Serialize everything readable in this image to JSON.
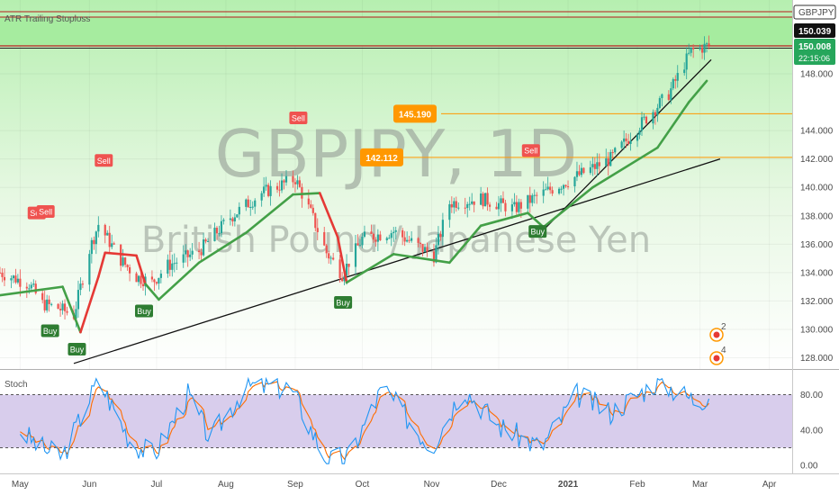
{
  "main_title": {
    "symbol": "GBPJPY, 1D",
    "name": "British Pound / Japanese Yen"
  },
  "indicator_label": "ATR Trailing Stoploss",
  "stoch_label": "Stoch",
  "price_axis": {
    "ticks": [
      "128.000",
      "130.000",
      "132.000",
      "134.000",
      "136.000",
      "138.000",
      "140.000",
      "142.000",
      "144.000",
      "148.000"
    ]
  },
  "stoch_axis": {
    "ticks": [
      "0.00",
      "40.00",
      "80.00"
    ]
  },
  "time_axis": {
    "ticks": [
      "May",
      "Jun",
      "Jul",
      "Aug",
      "Sep",
      "Oct",
      "Nov",
      "Dec",
      "2021",
      "Feb",
      "Mar",
      "Apr"
    ]
  },
  "right_labels": {
    "symbol_tag": "GBPJPY",
    "price_top": "150.039",
    "price_last": "150.008",
    "countdown": "22:15:06"
  },
  "levels": [
    {
      "label": "145.190"
    },
    {
      "label": "142.112"
    }
  ],
  "signals": {
    "sell": "Sell",
    "buy": "Buy"
  },
  "events": {
    "a": "2",
    "b": "4"
  },
  "colors": {
    "up": "#26a69a",
    "down": "#ef5350",
    "stop_up": "#43a047",
    "stop_down": "#e53935",
    "level": "#ff9800",
    "zone": "#9be79b",
    "stoch_k": "#2196f3",
    "stoch_d": "#ff6d00",
    "stoch_bg": "#d1c4e9"
  },
  "chart_data": {
    "type": "candlestick",
    "symbol": "GBPJPY",
    "timeframe": "1D",
    "period": "May 2020 to Mar 2021",
    "price_range": [
      127.0,
      151.5
    ],
    "close_path": [
      {
        "x": "2020-04-22",
        "y": 134.0
      },
      {
        "x": "2020-05-05",
        "y": 133.2
      },
      {
        "x": "2020-05-11",
        "y": 131.8
      },
      {
        "x": "2020-05-18",
        "y": 131.5
      },
      {
        "x": "2020-05-25",
        "y": 131.0
      },
      {
        "x": "2020-06-01",
        "y": 135.6
      },
      {
        "x": "2020-06-05",
        "y": 137.4
      },
      {
        "x": "2020-06-15",
        "y": 134.9
      },
      {
        "x": "2020-06-22",
        "y": 133.7
      },
      {
        "x": "2020-06-29",
        "y": 133.3
      },
      {
        "x": "2020-07-06",
        "y": 134.5
      },
      {
        "x": "2020-07-20",
        "y": 135.5
      },
      {
        "x": "2020-08-03",
        "y": 137.9
      },
      {
        "x": "2020-08-17",
        "y": 139.6
      },
      {
        "x": "2020-09-01",
        "y": 140.6
      },
      {
        "x": "2020-09-08",
        "y": 138.2
      },
      {
        "x": "2020-09-15",
        "y": 135.4
      },
      {
        "x": "2020-09-22",
        "y": 133.9
      },
      {
        "x": "2020-10-01",
        "y": 136.4
      },
      {
        "x": "2020-10-15",
        "y": 136.9
      },
      {
        "x": "2020-11-02",
        "y": 135.2
      },
      {
        "x": "2020-11-09",
        "y": 138.9
      },
      {
        "x": "2020-11-23",
        "y": 139.2
      },
      {
        "x": "2020-12-08",
        "y": 138.5
      },
      {
        "x": "2020-12-21",
        "y": 139.6
      },
      {
        "x": "2021-01-05",
        "y": 140.8
      },
      {
        "x": "2021-01-20",
        "y": 142.0
      },
      {
        "x": "2021-02-01",
        "y": 144.2
      },
      {
        "x": "2021-02-15",
        "y": 146.6
      },
      {
        "x": "2021-02-25",
        "y": 149.6
      },
      {
        "x": "2021-03-05",
        "y": 150.0
      }
    ],
    "atr_trailing_stop": [
      {
        "x": "2020-04-22",
        "y": 132.4
      },
      {
        "x": "2020-05-20",
        "y": 133.0
      },
      {
        "x": "2020-05-28",
        "y": 129.8
      },
      {
        "x": "2020-06-05",
        "y": 133.7
      },
      {
        "x": "2020-06-08",
        "y": 135.4
      },
      {
        "x": "2020-06-22",
        "y": 135.2
      },
      {
        "x": "2020-06-26",
        "y": 133.2
      },
      {
        "x": "2020-07-02",
        "y": 132.1
      },
      {
        "x": "2020-07-20",
        "y": 134.7
      },
      {
        "x": "2020-08-10",
        "y": 136.8
      },
      {
        "x": "2020-08-31",
        "y": 139.5
      },
      {
        "x": "2020-09-12",
        "y": 139.6
      },
      {
        "x": "2020-09-20",
        "y": 136.5
      },
      {
        "x": "2020-09-24",
        "y": 133.3
      },
      {
        "x": "2020-10-15",
        "y": 135.3
      },
      {
        "x": "2020-11-09",
        "y": 134.7
      },
      {
        "x": "2020-11-23",
        "y": 137.3
      },
      {
        "x": "2020-12-14",
        "y": 138.2
      },
      {
        "x": "2020-12-21",
        "y": 137.2
      },
      {
        "x": "2021-01-12",
        "y": 140.0
      },
      {
        "x": "2021-02-10",
        "y": 142.8
      },
      {
        "x": "2021-02-24",
        "y": 146.0
      },
      {
        "x": "2021-03-04",
        "y": 147.5
      }
    ],
    "horizontal_levels": [
      145.19,
      142.112
    ],
    "resistance_zone": [
      150.03,
      152.5
    ],
    "trendlines": [
      {
        "from": {
          "x": "2020-05-25",
          "y": 127.6
        },
        "to": {
          "x": "2021-03-10",
          "y": 142.0
        }
      },
      {
        "from": {
          "x": "2020-12-21",
          "y": 137.0
        },
        "to": {
          "x": "2021-03-06",
          "y": 149.0
        }
      }
    ],
    "signals": [
      {
        "type": "Sell",
        "x": "2020-05-08"
      },
      {
        "type": "Sell",
        "x": "2020-05-12"
      },
      {
        "type": "Buy",
        "x": "2020-05-14"
      },
      {
        "type": "Buy",
        "x": "2020-05-26"
      },
      {
        "type": "Sell",
        "x": "2020-06-07"
      },
      {
        "type": "Buy",
        "x": "2020-06-25"
      },
      {
        "type": "Sell",
        "x": "2020-09-02"
      },
      {
        "type": "Buy",
        "x": "2020-09-22"
      },
      {
        "type": "Sell",
        "x": "2020-12-15"
      },
      {
        "type": "Buy",
        "x": "2020-12-18"
      }
    ],
    "stochastic": {
      "levels": [
        80,
        20
      ],
      "ylim": [
        0,
        100
      ],
      "k": [
        {
          "x": "2020-05-01",
          "y": 40
        },
        {
          "x": "2020-05-10",
          "y": 20
        },
        {
          "x": "2020-05-20",
          "y": 10
        },
        {
          "x": "2020-06-05",
          "y": 97
        },
        {
          "x": "2020-06-20",
          "y": 25
        },
        {
          "x": "2020-06-30",
          "y": 12
        },
        {
          "x": "2020-07-15",
          "y": 80
        },
        {
          "x": "2020-07-25",
          "y": 30
        },
        {
          "x": "2020-08-10",
          "y": 90
        },
        {
          "x": "2020-08-30",
          "y": 88
        },
        {
          "x": "2020-09-15",
          "y": 5
        },
        {
          "x": "2020-09-25",
          "y": 10
        },
        {
          "x": "2020-10-10",
          "y": 88
        },
        {
          "x": "2020-11-01",
          "y": 20
        },
        {
          "x": "2020-11-15",
          "y": 88
        },
        {
          "x": "2020-12-01",
          "y": 45
        },
        {
          "x": "2020-12-20",
          "y": 20
        },
        {
          "x": "2021-01-05",
          "y": 80
        },
        {
          "x": "2021-01-20",
          "y": 60
        },
        {
          "x": "2021-02-10",
          "y": 95
        },
        {
          "x": "2021-02-28",
          "y": 72
        },
        {
          "x": "2021-03-05",
          "y": 80
        }
      ]
    }
  }
}
